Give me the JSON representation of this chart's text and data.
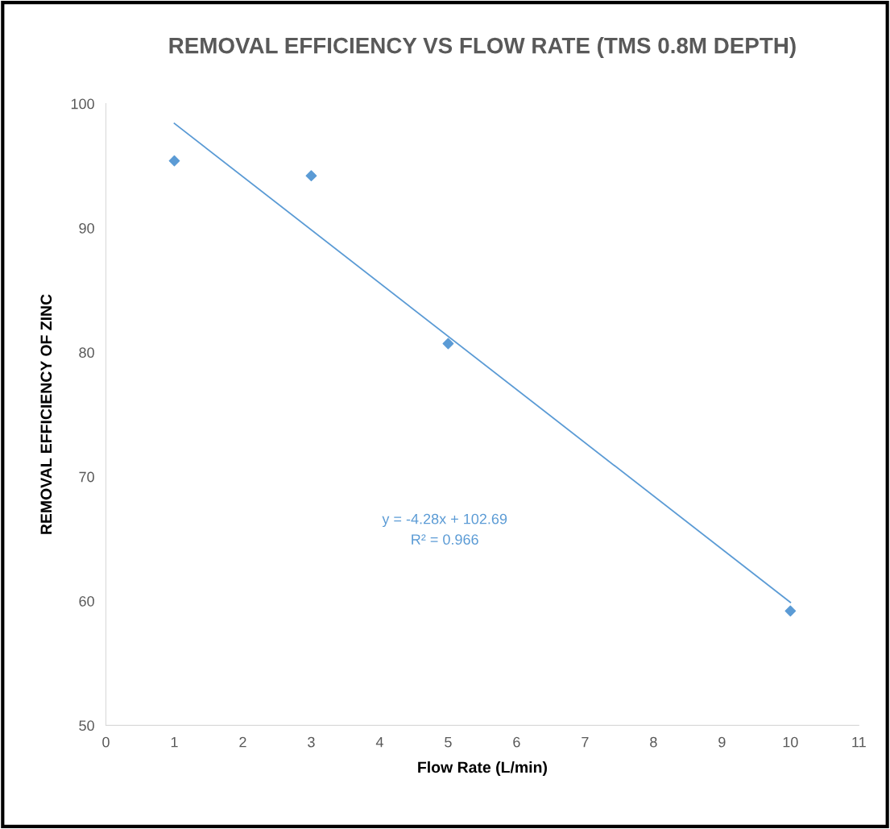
{
  "chart_data": {
    "type": "scatter",
    "title": "REMOVAL EFFICIENCY VS FLOW RATE (TMS 0.8M DEPTH)",
    "xlabel": "Flow Rate (L/min)",
    "ylabel": "REMOVAL EFFICIENCY OF ZINC",
    "x": [
      1,
      3,
      5,
      10
    ],
    "marker": "diamond",
    "grid": false,
    "legend": false,
    "series": [
      {
        "color": "#5b9bd5",
        "values": [
          95.4,
          94.2,
          80.7,
          59.2
        ]
      },
      {
        "type": "line",
        "color": "#5b9bd5",
        "x": [
          1,
          10
        ],
        "values": [
          98.41,
          59.89
        ],
        "marker": "none"
      }
    ],
    "annotations": [
      "y = -4.28x + 102.69",
      "R² = 0.966"
    ],
    "xlim": [
      0,
      11
    ],
    "xticks": [
      0,
      1,
      2,
      3,
      4,
      5,
      6,
      7,
      8,
      9,
      10,
      11
    ],
    "ylim": [
      50,
      100
    ],
    "yticks": [
      50,
      60,
      70,
      80,
      90,
      100
    ]
  }
}
